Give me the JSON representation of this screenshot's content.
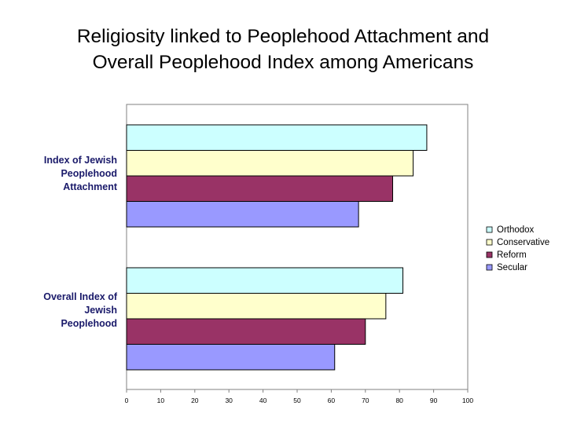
{
  "title_line1": "Religiosity linked to Peoplehood Attachment and",
  "title_line2": "Overall Peoplehood Index among Americans",
  "chart_data": {
    "type": "bar",
    "orientation": "horizontal",
    "categories": [
      [
        "Index of Jewish",
        "Peoplehood",
        "Attachment"
      ],
      [
        "Overall Index of",
        "Jewish",
        "Peoplehood"
      ]
    ],
    "series": [
      {
        "name": "Orthodox",
        "color": "#ccffff",
        "values": [
          88,
          81
        ]
      },
      {
        "name": "Conservative",
        "color": "#ffffcc",
        "values": [
          84,
          76
        ]
      },
      {
        "name": "Reform",
        "color": "#993366",
        "values": [
          78,
          70
        ]
      },
      {
        "name": "Secular",
        "color": "#9999ff",
        "values": [
          68,
          61
        ]
      }
    ],
    "xlim": [
      0,
      100
    ],
    "xticks": [
      0,
      10,
      20,
      30,
      40,
      50,
      60,
      70,
      80,
      90,
      100
    ],
    "gridlines": false,
    "legend_position": "right"
  }
}
